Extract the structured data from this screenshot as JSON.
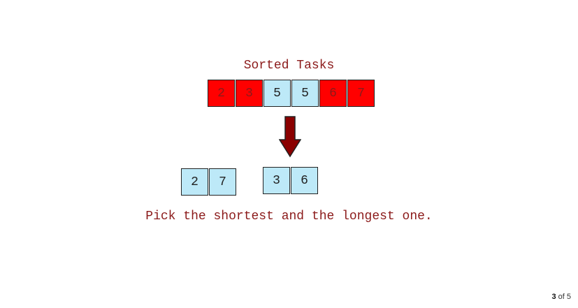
{
  "diagram": {
    "title": "Sorted Tasks",
    "sorted_tasks": [
      {
        "value": "2",
        "color": "#ff0000"
      },
      {
        "value": "3",
        "color": "#ff0000"
      },
      {
        "value": "5",
        "color": "#bde9f8"
      },
      {
        "value": "5",
        "color": "#bde9f8"
      },
      {
        "value": "6",
        "color": "#ff0000"
      },
      {
        "value": "7",
        "color": "#ff0000"
      }
    ],
    "pairs": [
      {
        "values": [
          "2",
          "7"
        ],
        "color": "#bde9f8"
      },
      {
        "values": [
          "3",
          "6"
        ],
        "color": "#bde9f8"
      }
    ],
    "arrow_color": "#8b0000",
    "caption": "Pick the shortest and the longest one."
  },
  "pager": {
    "current": "3",
    "separator": "of",
    "total": "5"
  }
}
